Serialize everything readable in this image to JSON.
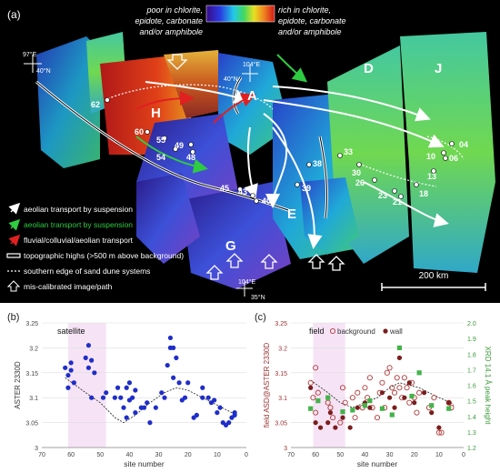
{
  "panel_a": {
    "label": "(a)",
    "colorbar": {
      "left_text": [
        "poor in chlorite,",
        "epidote, carbonate",
        "and/or amphibole"
      ],
      "right_text": [
        "rich in chlorite,",
        "epidote, carbonate",
        "and/or amphibole"
      ]
    },
    "coord_labels": {
      "top_lon": "104°E",
      "mid_lat": "40°N",
      "left_lon": "97°E",
      "left_lat": "40°N",
      "bottom_lon": "104°E",
      "bottom_lat": "35°N"
    },
    "region_labels": [
      "H",
      "A",
      "D",
      "J",
      "E",
      "G"
    ],
    "site_labels": [
      "62",
      "60",
      "55",
      "54",
      "49",
      "48",
      "45",
      "43",
      "40",
      "39",
      "38",
      "33",
      "30",
      "26",
      "23",
      "21",
      "18",
      "13",
      "10",
      "06",
      "04"
    ],
    "legend": [
      "aeolian transport by suspension",
      "aeolian transport by suspension",
      "fluvial/colluvial/aeolian transport",
      "topographic highs (>500 m above background)",
      "southern edge of sand dune systems",
      "mis-calibrated image/path"
    ],
    "scale_bar": "200 km",
    "colors": {
      "white_arrow": "#ffffff",
      "green_arrow": "#2ecc40",
      "red_arrow": "#e02020"
    }
  },
  "chart_data": [
    {
      "panel": "(b)",
      "type": "scatter",
      "annotation": "satellite",
      "xlabel": "site number",
      "ylabel": "ASTER 2330D",
      "xlim": [
        70,
        0
      ],
      "ylim": [
        3.0,
        3.25
      ],
      "xticks": [
        70,
        60,
        50,
        40,
        30,
        20,
        10,
        0
      ],
      "yticks": [
        3,
        3.05,
        3.1,
        3.15,
        3.2,
        3.25
      ],
      "highlight_band": [
        61,
        48
      ],
      "series": [
        {
          "marker": "filled-circle",
          "color": "#1f2ec8",
          "points": [
            [
              62,
              3.16
            ],
            [
              61,
              3.145
            ],
            [
              60,
              3.155
            ],
            [
              60,
              3.17
            ],
            [
              61,
              3.12
            ],
            [
              59,
              3.13
            ],
            [
              55,
              3.18
            ],
            [
              54,
              3.205
            ],
            [
              54,
              3.16
            ],
            [
              53,
              3.1
            ],
            [
              53,
              3.175
            ],
            [
              52,
              3.15
            ],
            [
              49,
              3.1
            ],
            [
              48,
              3.11
            ],
            [
              45,
              3.1
            ],
            [
              44,
              3.12
            ],
            [
              43,
              3.1
            ],
            [
              42,
              3.08
            ],
            [
              41,
              3.06
            ],
            [
              41,
              3.12
            ],
            [
              40,
              3.095
            ],
            [
              40,
              3.13
            ],
            [
              39,
              3.1
            ],
            [
              38,
              3.07
            ],
            [
              38,
              3.115
            ],
            [
              36,
              3.08
            ],
            [
              35,
              3.08
            ],
            [
              34,
              3.09
            ],
            [
              33,
              3.05
            ],
            [
              31,
              3.08
            ],
            [
              29,
              3.11
            ],
            [
              28,
              3.1
            ],
            [
              27,
              3.165
            ],
            [
              26,
              3.22
            ],
            [
              26,
              3.2
            ],
            [
              25,
              3.2
            ],
            [
              25,
              3.14
            ],
            [
              24,
              3.18
            ],
            [
              23,
              3.13
            ],
            [
              22,
              3.095
            ],
            [
              21,
              3.1
            ],
            [
              20,
              3.13
            ],
            [
              18,
              3.06
            ],
            [
              17,
              3.065
            ],
            [
              15,
              3.1
            ],
            [
              15,
              3.12
            ],
            [
              13,
              3.1
            ],
            [
              12,
              3.09
            ],
            [
              11,
              3.095
            ],
            [
              10,
              3.07
            ],
            [
              9,
              3.08
            ],
            [
              8,
              3.05
            ],
            [
              7,
              3.045
            ],
            [
              6,
              3.05
            ],
            [
              5,
              3.06
            ],
            [
              4,
              3.065
            ],
            [
              4,
              3.07
            ]
          ]
        }
      ],
      "trend_line": [
        [
          62,
          3.14
        ],
        [
          55,
          3.11
        ],
        [
          50,
          3.09
        ],
        [
          45,
          3.06
        ],
        [
          42,
          3.05
        ],
        [
          38,
          3.065
        ],
        [
          33,
          3.09
        ],
        [
          28,
          3.11
        ],
        [
          24,
          3.12
        ],
        [
          20,
          3.115
        ],
        [
          15,
          3.1
        ],
        [
          10,
          3.085
        ],
        [
          5,
          3.07
        ],
        [
          4,
          3.07
        ]
      ]
    },
    {
      "panel": "(c)",
      "type": "scatter",
      "annotation": "field",
      "legend": [
        "background",
        "wall"
      ],
      "xlabel": "site number",
      "ylabel": "field ASD@ASTER 2330D",
      "y2label": "XRD 14.1 Å peak height",
      "xlim": [
        70,
        0
      ],
      "ylim": [
        3.0,
        3.25
      ],
      "y2lim": [
        1.2,
        2.0
      ],
      "xticks": [
        70,
        60,
        50,
        40,
        30,
        20,
        10,
        0
      ],
      "yticks": [
        3,
        3.05,
        3.1,
        3.15,
        3.2,
        3.25
      ],
      "y2ticks": [
        1.2,
        1.3,
        1.4,
        1.5,
        1.6,
        1.7,
        1.8,
        1.9,
        2.0
      ],
      "highlight_band": [
        61,
        48
      ],
      "series": [
        {
          "name": "background",
          "marker": "open-circle",
          "color": "#b23a3a",
          "points": [
            [
              62,
              3.13
            ],
            [
              61,
              3.1
            ],
            [
              60,
              3.16
            ],
            [
              60,
              3.07
            ],
            [
              59,
              3.11
            ],
            [
              55,
              3.09
            ],
            [
              54,
              3.08
            ],
            [
              53,
              3.06
            ],
            [
              50,
              3.05
            ],
            [
              49,
              3.12
            ],
            [
              48,
              3.09
            ],
            [
              45,
              3.1
            ],
            [
              44,
              3.06
            ],
            [
              43,
              3.11
            ],
            [
              41,
              3.08
            ],
            [
              40,
              3.12
            ],
            [
              39,
              3.1
            ],
            [
              38,
              3.14
            ],
            [
              37,
              3.08
            ],
            [
              35,
              3.06
            ],
            [
              34,
              3.11
            ],
            [
              33,
              3.13
            ],
            [
              32,
              3.08
            ],
            [
              31,
              3.15
            ],
            [
              30,
              3.16
            ],
            [
              29,
              3.12
            ],
            [
              28,
              3.11
            ],
            [
              27,
              3.14
            ],
            [
              26,
              3.12
            ],
            [
              25,
              3.1
            ],
            [
              24,
              3.14
            ],
            [
              23,
              3.12
            ],
            [
              22,
              3.09
            ],
            [
              21,
              3.13
            ],
            [
              20,
              3.1
            ],
            [
              19,
              3.07
            ],
            [
              18,
              3.11
            ],
            [
              14,
              3.08
            ],
            [
              12,
              3.1
            ],
            [
              10,
              3.03
            ],
            [
              9,
              3.03
            ],
            [
              6,
              3.09
            ],
            [
              5,
              3.08
            ]
          ]
        },
        {
          "name": "wall",
          "marker": "filled-circle",
          "color": "#7a1e1e",
          "points": [
            [
              62,
              3.12
            ],
            [
              60,
              3.05
            ],
            [
              58,
              3.04
            ],
            [
              55,
              3.05
            ],
            [
              54,
              3.07
            ],
            [
              52,
              3.04
            ],
            [
              49,
              3.06
            ],
            [
              46,
              3.04
            ],
            [
              43,
              3.08
            ],
            [
              40,
              3.09
            ],
            [
              38,
              3.08
            ],
            [
              33,
              3.11
            ],
            [
              30,
              3.1
            ],
            [
              28,
              3.08
            ],
            [
              26,
              3.18
            ],
            [
              24,
              3.1
            ],
            [
              22,
              3.13
            ],
            [
              20,
              3.09
            ],
            [
              16,
              3.11
            ],
            [
              13,
              3.07
            ],
            [
              10,
              3.04
            ],
            [
              6,
              3.09
            ]
          ]
        },
        {
          "name": "XRD",
          "axis": "y2",
          "marker": "filled-square",
          "color": "#44b34a",
          "points": [
            [
              62,
              1.45
            ],
            [
              59,
              1.5
            ],
            [
              55,
              1.52
            ],
            [
              49,
              1.43
            ],
            [
              45,
              1.44
            ],
            [
              40,
              1.47
            ],
            [
              38,
              1.5
            ],
            [
              33,
              1.45
            ],
            [
              29,
              1.41
            ],
            [
              26,
              1.84
            ],
            [
              21,
              1.53
            ],
            [
              18,
              1.68
            ],
            [
              13,
              1.47
            ],
            [
              6,
              1.45
            ]
          ]
        }
      ],
      "trend_line": [
        [
          62,
          3.135
        ],
        [
          55,
          3.11
        ],
        [
          50,
          3.09
        ],
        [
          45,
          3.08
        ],
        [
          40,
          3.09
        ],
        [
          35,
          3.1
        ],
        [
          30,
          3.12
        ],
        [
          26,
          3.13
        ],
        [
          22,
          3.125
        ],
        [
          18,
          3.12
        ],
        [
          14,
          3.11
        ],
        [
          10,
          3.1
        ],
        [
          5,
          3.09
        ],
        [
          4,
          3.085
        ]
      ]
    }
  ]
}
